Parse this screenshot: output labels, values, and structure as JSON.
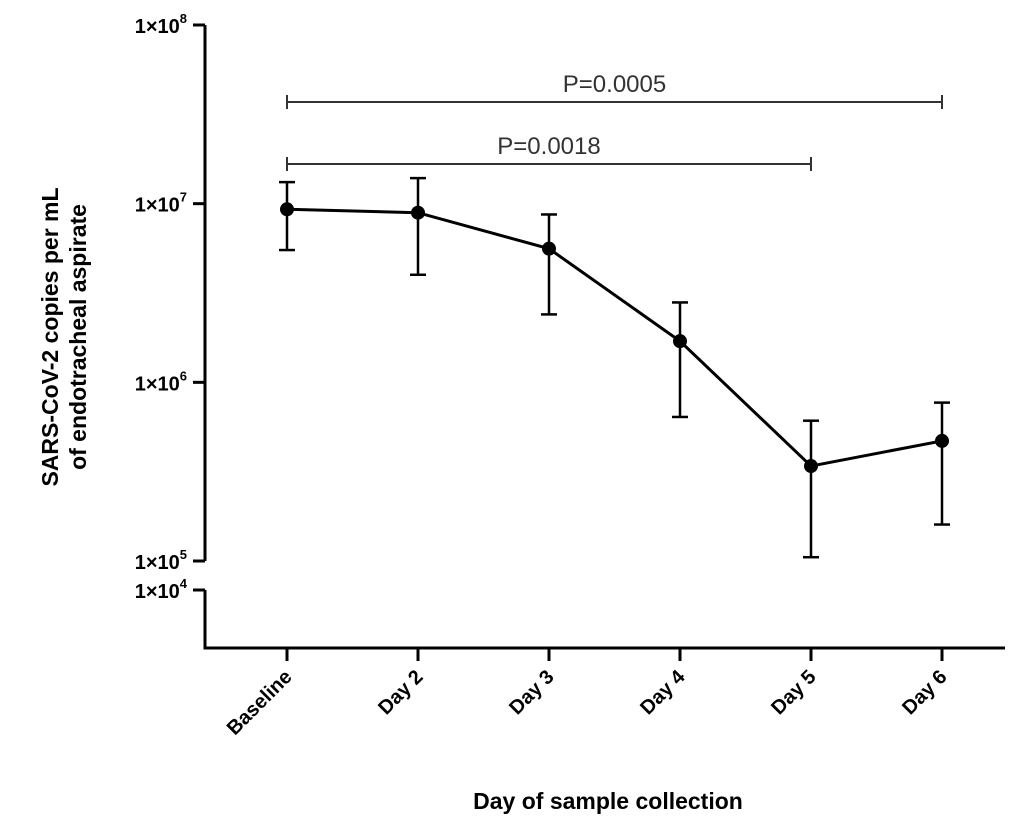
{
  "chart_data": {
    "type": "line",
    "categories": [
      "Baseline",
      "Day 2",
      "Day 3",
      "Day 4",
      "Day 5",
      "Day 6"
    ],
    "series": [
      {
        "values": [
          9300000,
          8900000,
          5600000,
          1700000,
          340000,
          470000
        ],
        "error_low": [
          5500000,
          4000000,
          2400000,
          640000,
          105000,
          160000
        ],
        "error_high": [
          13200000,
          13900000,
          8700000,
          2800000,
          610000,
          770000
        ],
        "color": "#000000"
      }
    ],
    "y_scale": "log",
    "ylim": [
      100000,
      100000000
    ],
    "axis_break": "below 1×10^5, additional tick at 1×10^4",
    "y_ticks": [
      {
        "value": 100000000,
        "mantissa": "1×10",
        "exp": "8"
      },
      {
        "value": 10000000,
        "mantissa": "1×10",
        "exp": "7"
      },
      {
        "value": 1000000,
        "mantissa": "1×10",
        "exp": "6"
      },
      {
        "value": 100000,
        "mantissa": "1×10",
        "exp": "5"
      }
    ],
    "y_break_tick": {
      "value": 10000,
      "mantissa": "1×10",
      "exp": "4"
    },
    "ylabel_line1": "SARS-CoV-2 copies per mL",
    "ylabel_line2": "of endotracheal aspirate",
    "xlabel": "Day of sample collection",
    "significance": [
      {
        "from": "Baseline",
        "to": "Day 6",
        "label": "P=0.0005"
      },
      {
        "from": "Baseline",
        "to": "Day 5",
        "label": "P=0.0018"
      }
    ],
    "grid": false,
    "legend": "none"
  }
}
